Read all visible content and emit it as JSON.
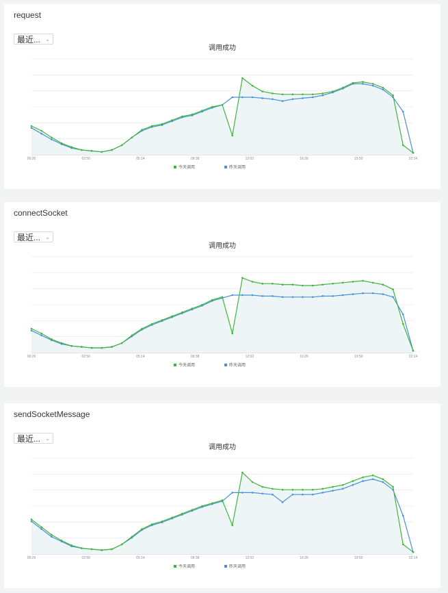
{
  "panels": [
    {
      "name": "request",
      "range_label": "最近...",
      "chart_title": "调用成功",
      "series_names": [
        "今天调用",
        "昨天调用"
      ],
      "colors": {
        "today": "#3fb53a",
        "yesterday": "#4a90d9"
      }
    },
    {
      "name": "connectSocket",
      "range_label": "最近...",
      "chart_title": "调用成功",
      "series_names": [
        "今天调用",
        "昨天调用"
      ],
      "colors": {
        "today": "#3fb53a",
        "yesterday": "#4a90d9"
      }
    },
    {
      "name": "sendSocketMessage",
      "range_label": "最近...",
      "chart_title": "调用成功",
      "series_names": [
        "今天调用",
        "昨天调用"
      ],
      "colors": {
        "today": "#3fb53a",
        "yesterday": "#4a90d9"
      }
    }
  ],
  "chart_data": [
    {
      "type": "line",
      "title": "调用成功",
      "x_ticks": [
        "00:26",
        "02:50",
        "05:14",
        "09:38",
        "12:02",
        "16:26",
        "19:50",
        "22:14"
      ],
      "ylim": [
        0,
        100
      ],
      "series": [
        {
          "name": "今天调用",
          "values": [
            30,
            25,
            18,
            12,
            8,
            5,
            4,
            3,
            5,
            10,
            18,
            26,
            30,
            32,
            36,
            40,
            42,
            46,
            50,
            52,
            20,
            80,
            72,
            66,
            64,
            63,
            63,
            63,
            63,
            64,
            66,
            70,
            75,
            76,
            74,
            70,
            62,
            10,
            2
          ]
        },
        {
          "name": "昨天调用",
          "values": [
            28,
            22,
            16,
            11,
            7,
            5,
            4,
            3,
            5,
            10,
            18,
            25,
            29,
            31,
            35,
            39,
            41,
            45,
            49,
            52,
            60,
            60,
            60,
            59,
            58,
            56,
            58,
            59,
            60,
            62,
            65,
            69,
            74,
            74,
            72,
            68,
            60,
            45,
            2
          ]
        }
      ]
    },
    {
      "type": "line",
      "title": "调用成功",
      "x_ticks": [
        "00:26",
        "02:50",
        "05:14",
        "09:38",
        "12:02",
        "16:26",
        "19:50",
        "22:14"
      ],
      "ylim": [
        0,
        100
      ],
      "series": [
        {
          "name": "今天调用",
          "values": [
            25,
            20,
            14,
            10,
            7,
            6,
            5,
            5,
            6,
            10,
            18,
            25,
            30,
            34,
            38,
            42,
            46,
            50,
            55,
            58,
            20,
            78,
            74,
            72,
            72,
            71,
            71,
            70,
            70,
            71,
            72,
            73,
            74,
            75,
            73,
            71,
            66,
            30,
            2
          ]
        },
        {
          "name": "昨天调用",
          "values": [
            23,
            18,
            13,
            9,
            7,
            6,
            5,
            5,
            6,
            10,
            17,
            24,
            29,
            33,
            37,
            41,
            45,
            49,
            54,
            57,
            60,
            60,
            60,
            59,
            59,
            58,
            58,
            58,
            58,
            59,
            59,
            60,
            61,
            62,
            62,
            61,
            58,
            40,
            2
          ]
        }
      ]
    },
    {
      "type": "line",
      "title": "调用成功",
      "x_ticks": [
        "00:26",
        "02:50",
        "05:14",
        "09:38",
        "12:02",
        "16:26",
        "19:50",
        "22:14"
      ],
      "ylim": [
        0,
        100
      ],
      "series": [
        {
          "name": "今天调用",
          "values": [
            36,
            28,
            20,
            14,
            9,
            6,
            5,
            4,
            5,
            10,
            18,
            26,
            31,
            34,
            38,
            42,
            46,
            50,
            53,
            56,
            30,
            85,
            75,
            70,
            68,
            67,
            67,
            67,
            67,
            68,
            70,
            72,
            76,
            80,
            82,
            78,
            70,
            10,
            2
          ]
        },
        {
          "name": "昨天调用",
          "values": [
            34,
            26,
            18,
            13,
            8,
            6,
            5,
            4,
            5,
            10,
            17,
            25,
            30,
            33,
            37,
            41,
            45,
            49,
            52,
            55,
            64,
            64,
            64,
            63,
            62,
            54,
            62,
            62,
            62,
            64,
            66,
            68,
            72,
            76,
            78,
            75,
            67,
            40,
            2
          ]
        }
      ]
    }
  ]
}
